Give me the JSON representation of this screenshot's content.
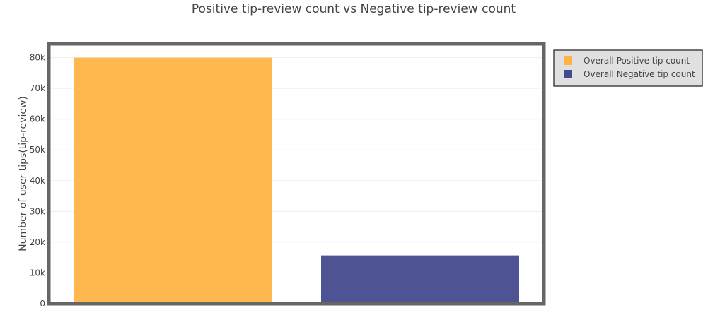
{
  "chart_data": {
    "type": "bar",
    "title": "Positive tip-review count vs Negative tip-review count",
    "xlabel": "",
    "ylabel": "Number of user tips(tip-review)",
    "categories": [
      "Overall Positive tip count",
      "Overall Negative tip count"
    ],
    "series": [
      {
        "name": "Overall Positive tip count",
        "values": [
          80000,
          null
        ],
        "color": "#ffb347"
      },
      {
        "name": "Overall Negative tip count",
        "values": [
          null,
          15700
        ],
        "color": "#444a8e"
      }
    ],
    "ylim": [
      0,
      84500
    ],
    "yticks": [
      0,
      10000,
      20000,
      30000,
      40000,
      50000,
      60000,
      70000,
      80000
    ],
    "ytick_labels": [
      "0",
      "10k",
      "20k",
      "30k",
      "40k",
      "50k",
      "60k",
      "70k",
      "80k"
    ],
    "grid": true,
    "legend": {
      "position": "top-right",
      "entries": [
        "Overall Positive tip count",
        "Overall Negative tip count"
      ],
      "background": "#e0e0e0",
      "border": "#444444"
    },
    "plot_border_color": "#666666"
  }
}
